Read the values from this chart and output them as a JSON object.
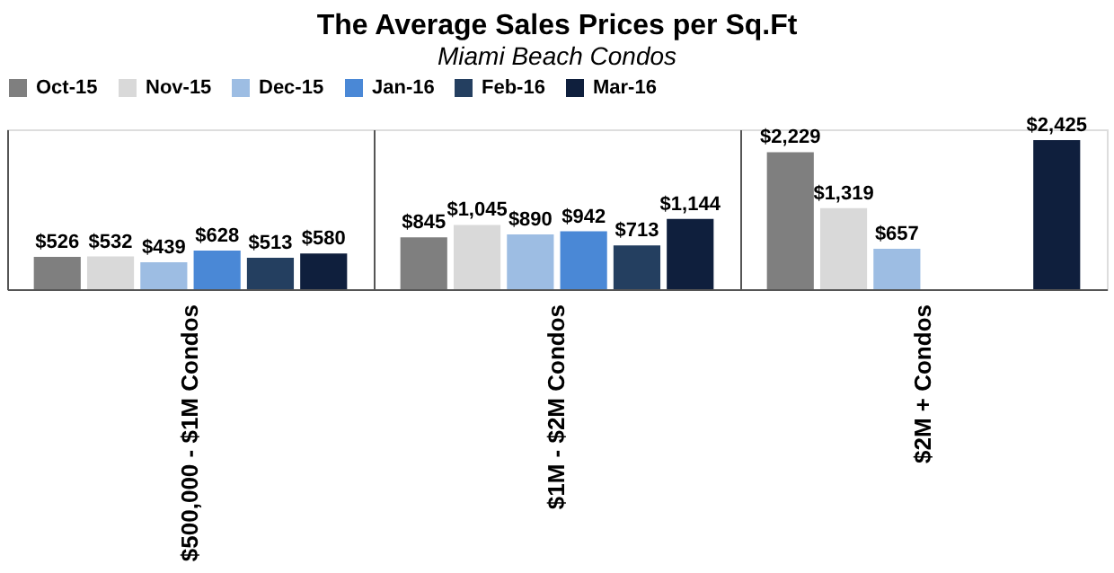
{
  "chart_data": {
    "type": "bar",
    "title": "The Average Sales Prices per Sq.Ft",
    "subtitle": "Miami Beach Condos",
    "categories": [
      "$500,000 - $1M Condos",
      "$1M - $2M Condos",
      "$2M + Condos"
    ],
    "series": [
      {
        "name": "Oct-15",
        "color": "#7f7f7f",
        "values": [
          526,
          845,
          2229
        ],
        "value_labels": [
          "$526",
          "$845",
          "$2,229"
        ]
      },
      {
        "name": "Nov-15",
        "color": "#d9d9d9",
        "values": [
          532,
          1045,
          1319
        ],
        "value_labels": [
          "$532",
          "$1,045",
          "$1,319"
        ]
      },
      {
        "name": "Dec-15",
        "color": "#9dbde3",
        "values": [
          439,
          890,
          657
        ],
        "value_labels": [
          "$439",
          "$890",
          "$657"
        ]
      },
      {
        "name": "Jan-16",
        "color": "#4a88d6",
        "values": [
          628,
          942,
          null
        ],
        "value_labels": [
          "$628",
          "$942",
          null
        ]
      },
      {
        "name": "Feb-16",
        "color": "#243f60",
        "values": [
          513,
          713,
          null
        ],
        "value_labels": [
          "$513",
          "$713",
          null
        ]
      },
      {
        "name": "Mar-16",
        "color": "#0f1f3d",
        "values": [
          580,
          1144,
          2425
        ],
        "value_labels": [
          "$580",
          "$1,144",
          "$2,425"
        ]
      }
    ],
    "legend": "top",
    "grid": "x"
  }
}
